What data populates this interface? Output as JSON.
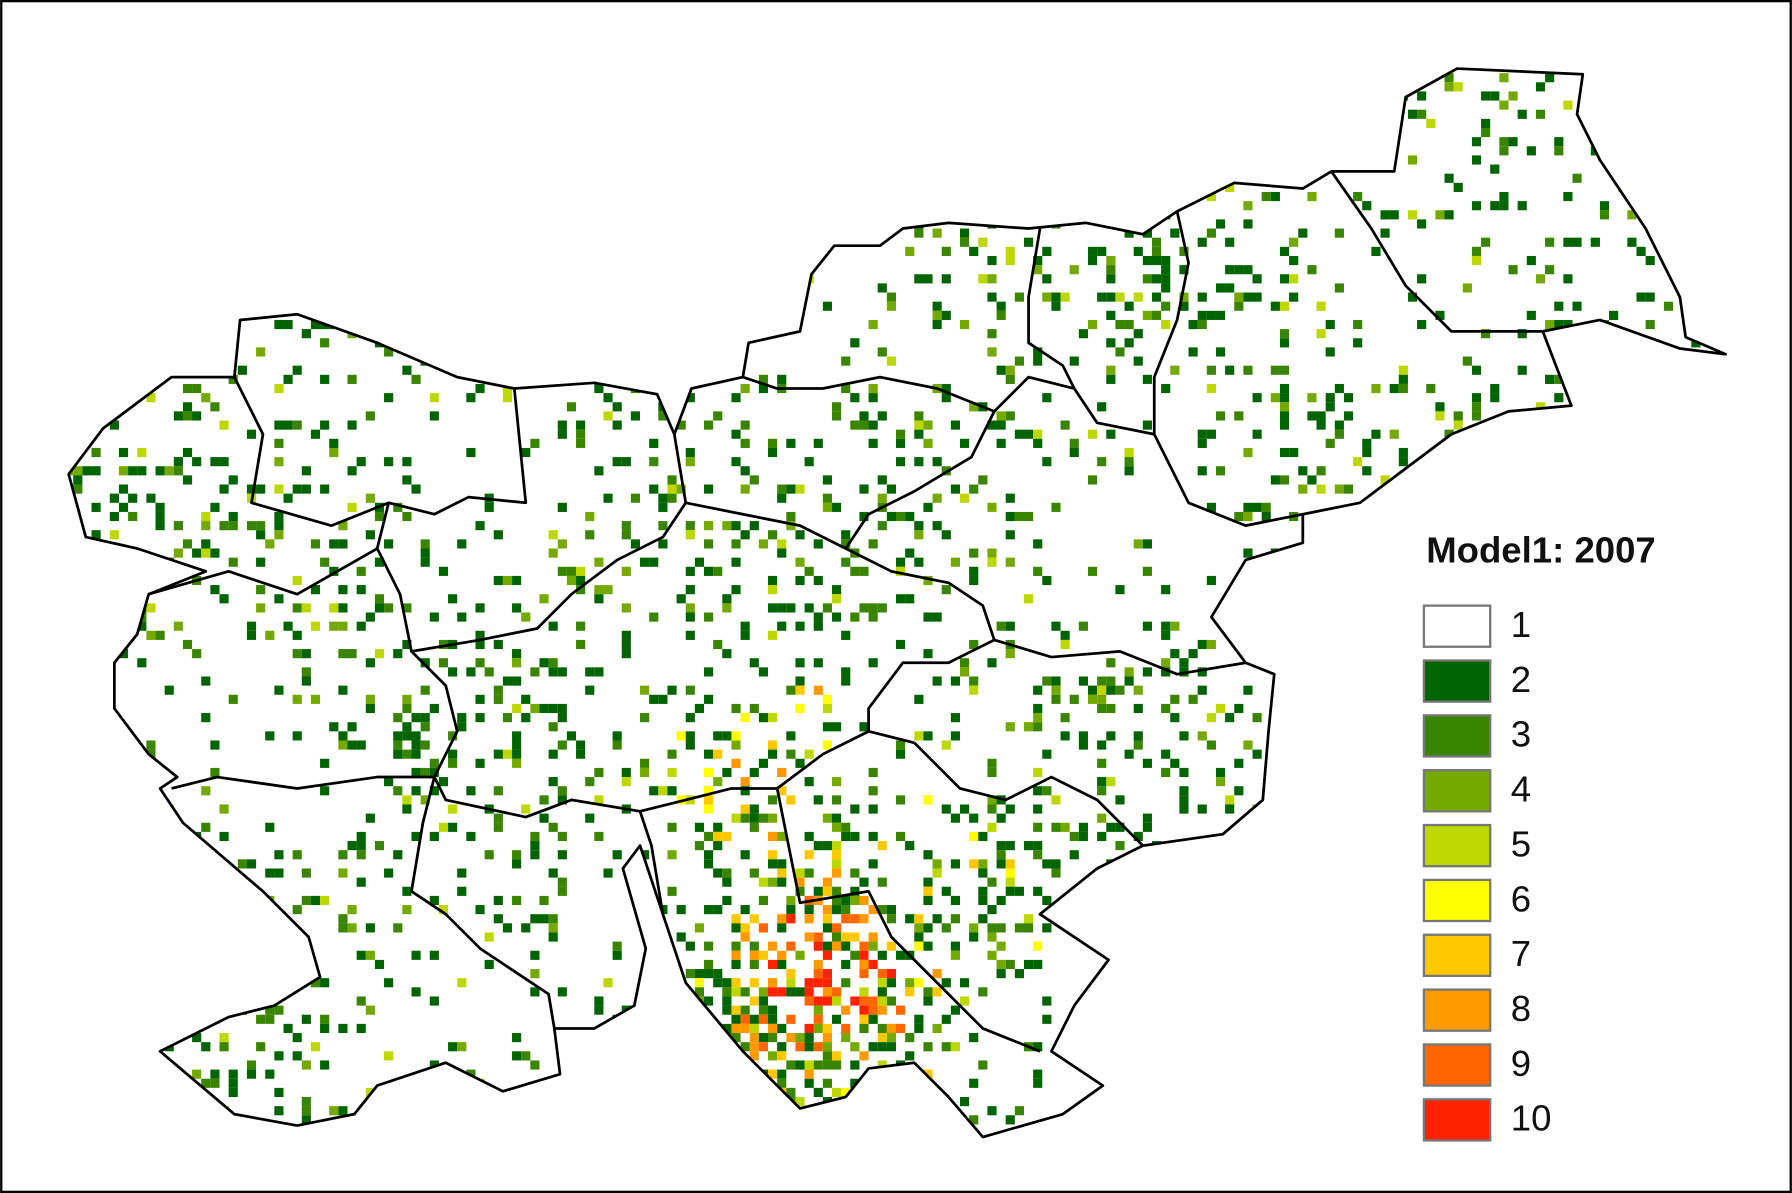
{
  "legend": {
    "title": "Model1: 2007",
    "items": [
      {
        "label": "1",
        "color": "#ffffff"
      },
      {
        "label": "2",
        "color": "#006400"
      },
      {
        "label": "3",
        "color": "#3a8500"
      },
      {
        "label": "4",
        "color": "#74aa00"
      },
      {
        "label": "5",
        "color": "#bcd800"
      },
      {
        "label": "6",
        "color": "#ffff00"
      },
      {
        "label": "7",
        "color": "#ffc800"
      },
      {
        "label": "8",
        "color": "#ff9900"
      },
      {
        "label": "9",
        "color": "#ff6600"
      },
      {
        "label": "10",
        "color": "#ff2200"
      }
    ]
  }
}
